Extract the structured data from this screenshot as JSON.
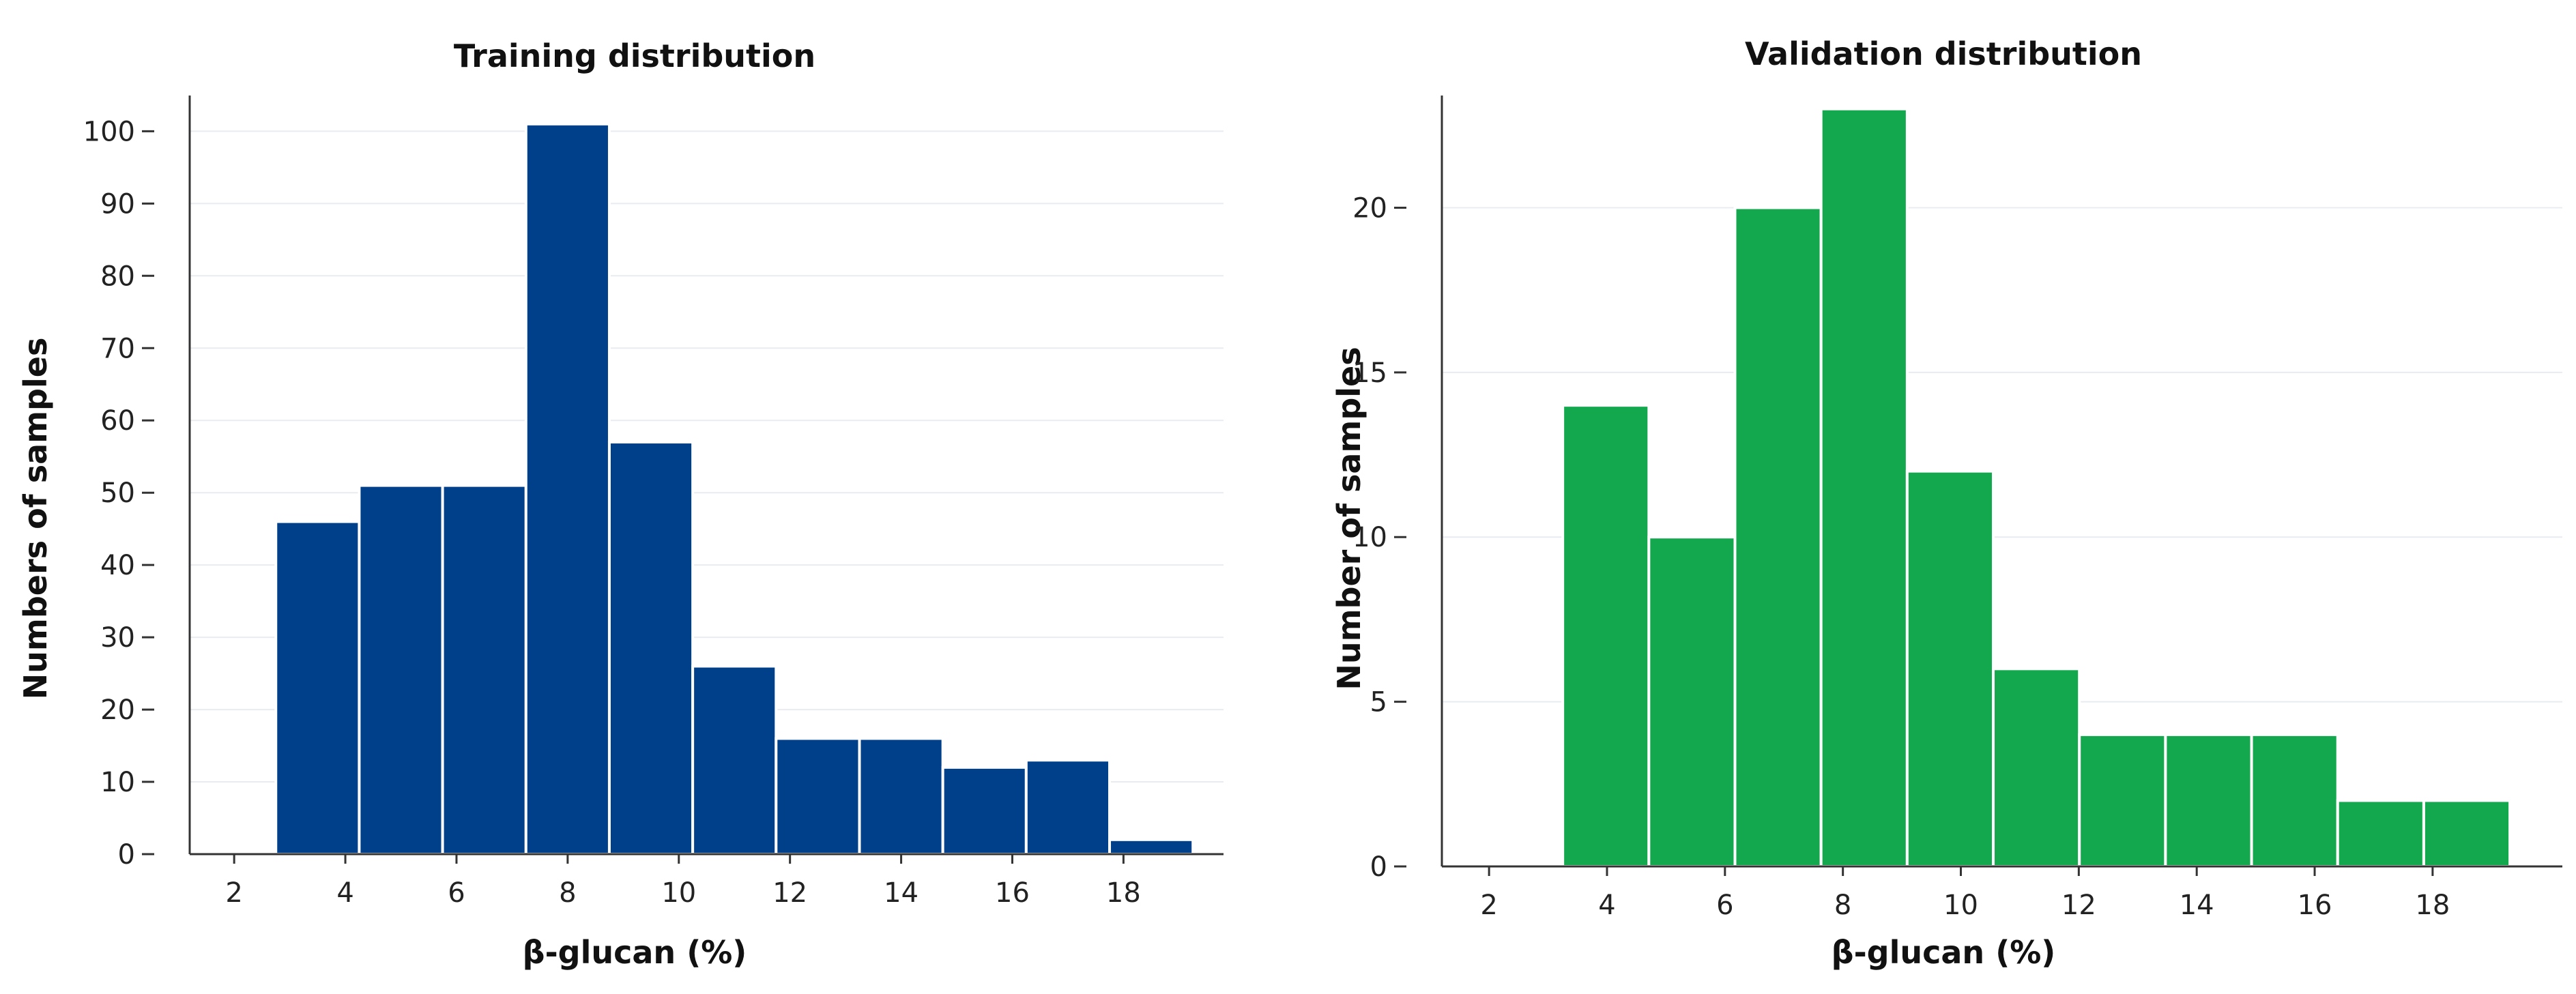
{
  "chart_data": [
    {
      "type": "bar",
      "title": "Training distribution",
      "xlabel": "β-glucan (%)",
      "ylabel": "Numbers of samples",
      "bin_start": 2.75,
      "bin_width": 1.5,
      "values": [
        46,
        51,
        51,
        101,
        57,
        26,
        16,
        16,
        12,
        13,
        2
      ],
      "xlim": [
        1.2,
        19.8
      ],
      "ylim": [
        0,
        104
      ],
      "xticks": [
        2,
        4,
        6,
        8,
        10,
        12,
        14,
        16,
        18
      ],
      "yticks": [
        0,
        10,
        20,
        30,
        40,
        50,
        60,
        70,
        80,
        90,
        100
      ],
      "color": "#003f8a",
      "grid": true
    },
    {
      "type": "bar",
      "title": "Validation distribution",
      "xlabel": "β-glucan (%)",
      "ylabel": "Number of samples",
      "bin_start": 3.25,
      "bin_width": 1.46,
      "values": [
        14,
        10,
        20,
        23,
        12,
        6,
        4,
        4,
        4,
        2,
        2
      ],
      "xlim": [
        1.2,
        20.2
      ],
      "ylim": [
        0,
        23.2
      ],
      "xticks": [
        2,
        4,
        6,
        8,
        10,
        12,
        14,
        16,
        18
      ],
      "yticks": [
        0,
        5,
        10,
        15,
        20
      ],
      "color": "#14a84e",
      "grid": true
    }
  ]
}
